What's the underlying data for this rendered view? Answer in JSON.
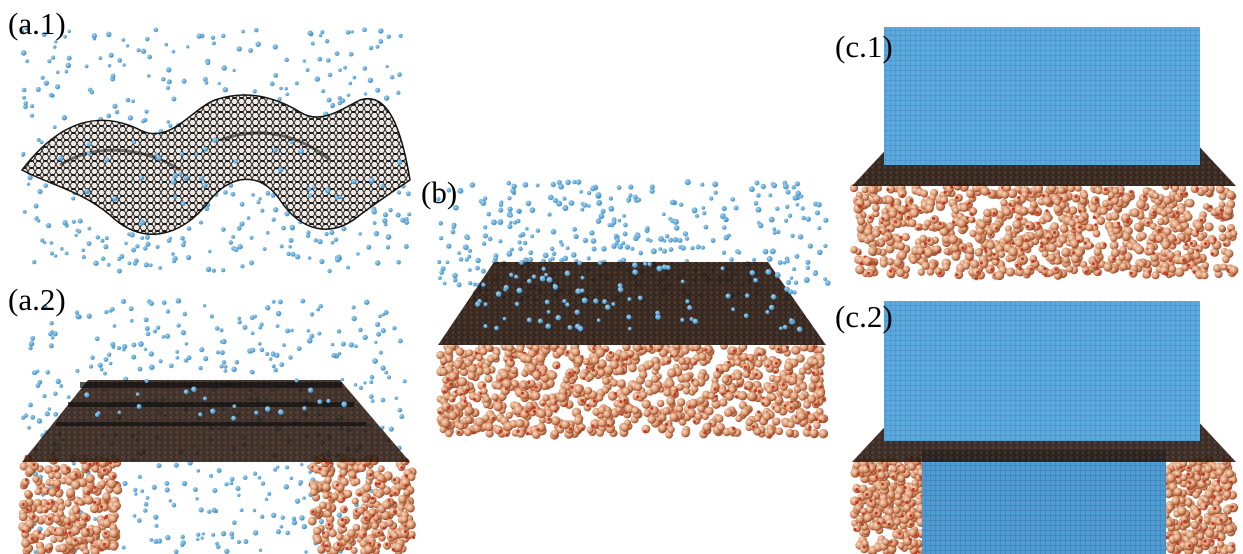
{
  "panels": {
    "a1": {
      "label": "(a.1)"
    },
    "a2": {
      "label": "(a.2)"
    },
    "b": {
      "label": "(b)"
    },
    "c1": {
      "label": "(c.1)"
    },
    "c2": {
      "label": "(c.2)"
    }
  },
  "colors": {
    "water": "#58a7dd",
    "water_dark": "#3f8fc7",
    "graphene": "#2a1a12",
    "substrate_light": "#e6b99a",
    "substrate_mid": "#c8805c",
    "substrate_dark": "#8b3f22",
    "oxygen": "#c63a24"
  }
}
